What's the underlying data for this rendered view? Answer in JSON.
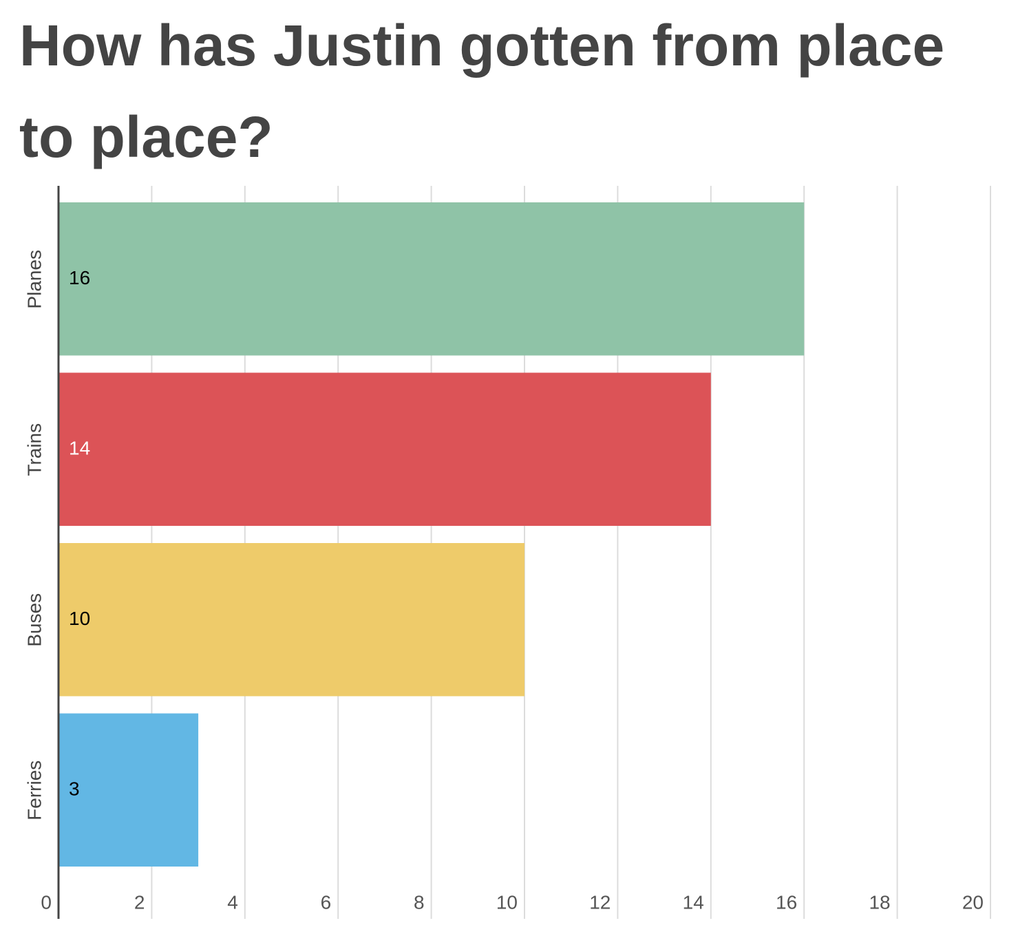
{
  "chart_data": {
    "type": "hbar",
    "title": "How has Justin gotten from place to place?",
    "categories": [
      "Planes",
      "Trains",
      "Buses",
      "Ferries"
    ],
    "values": [
      16,
      14,
      10,
      3
    ],
    "colors": [
      "#8fc3a7",
      "#dc5357",
      "#eecb6a",
      "#62b7e4"
    ],
    "value_label_colors": [
      "#000000",
      "#ffffff",
      "#000000",
      "#000000"
    ],
    "xlim": [
      0,
      20
    ],
    "xticks": [
      0,
      2,
      4,
      6,
      8,
      10,
      12,
      14,
      16,
      18,
      20
    ],
    "grid": true
  }
}
